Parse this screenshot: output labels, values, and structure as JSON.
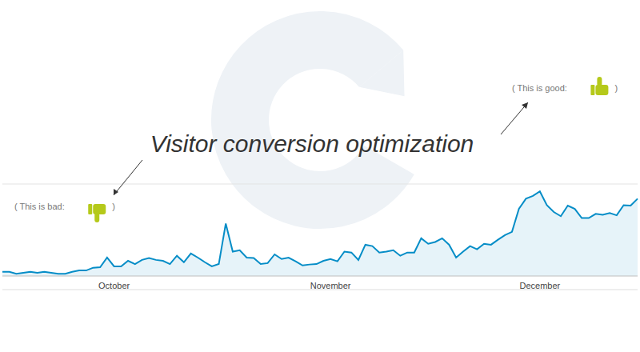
{
  "chart_data": {
    "type": "area",
    "title": "Visitor conversion optimization",
    "annotations": [
      {
        "text": "( This is bad:",
        "close": ")"
      },
      {
        "text": "( This is good:",
        "close": ")"
      }
    ],
    "categories": [
      null,
      null,
      null,
      null,
      null,
      null,
      null,
      null,
      null,
      null,
      null,
      null,
      null,
      null,
      null,
      null,
      "October",
      null,
      null,
      null,
      null,
      null,
      null,
      null,
      null,
      null,
      null,
      null,
      null,
      null,
      null,
      null,
      null,
      null,
      null,
      null,
      null,
      null,
      null,
      null,
      null,
      null,
      null,
      null,
      null,
      null,
      null,
      "November",
      null,
      null,
      null,
      null,
      null,
      null,
      null,
      null,
      null,
      null,
      null,
      null,
      null,
      null,
      null,
      null,
      null,
      null,
      null,
      null,
      null,
      null,
      null,
      null,
      null,
      null,
      null,
      null,
      null,
      "December",
      null,
      null,
      null,
      null,
      null,
      null,
      null,
      null,
      null,
      null,
      null,
      null,
      null,
      null
    ],
    "values": [
      9,
      9,
      5,
      7,
      9,
      7,
      9,
      7,
      5,
      5,
      9,
      12,
      12,
      18,
      19,
      40,
      21,
      21,
      33,
      26,
      35,
      39,
      35,
      33,
      26,
      44,
      30,
      49,
      40,
      30,
      21,
      26,
      114,
      53,
      56,
      40,
      39,
      26,
      28,
      47,
      37,
      40,
      32,
      23,
      25,
      26,
      33,
      37,
      32,
      53,
      51,
      35,
      68,
      65,
      51,
      53,
      56,
      44,
      51,
      51,
      82,
      70,
      74,
      82,
      68,
      40,
      53,
      65,
      58,
      70,
      68,
      79,
      89,
      96,
      146,
      168,
      174,
      184,
      154,
      139,
      130,
      153,
      146,
      126,
      126,
      135,
      133,
      137,
      132,
      154,
      153,
      168
    ],
    "color": "#058dc7",
    "ylim": [
      0,
      200
    ],
    "yticks": [
      0,
      100,
      200
    ],
    "grid": true,
    "tick_labels": "x"
  }
}
